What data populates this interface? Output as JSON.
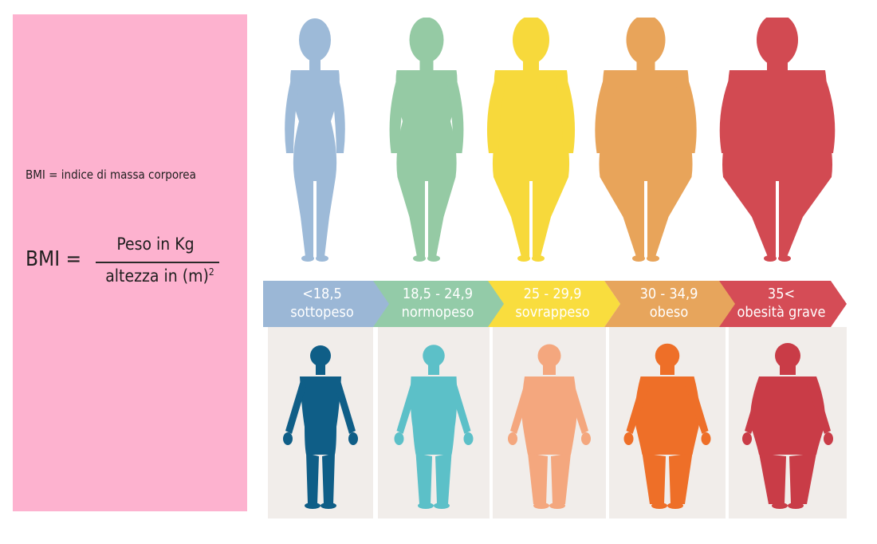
{
  "definition": "BMI = indice di massa corporea",
  "formula": {
    "lhs": "BMI =",
    "numerator": "Peso in Kg",
    "denominator_text": "altezza in (m)",
    "exponent": "2"
  },
  "categories": [
    {
      "range": "<18,5",
      "label": "sottopeso",
      "chevron_color": "#9bb7d6",
      "female_color": "#9dbad8",
      "male_color": "#0f5e87"
    },
    {
      "range": "18,5 - 24,9",
      "label": "normopeso",
      "chevron_color": "#93cba8",
      "female_color": "#95caa4",
      "male_color": "#5cc0c8"
    },
    {
      "range": "25 - 29,9",
      "label": "sovrappeso",
      "chevron_color": "#f9dd3e",
      "female_color": "#f7d93b",
      "male_color": "#f4a77e"
    },
    {
      "range": "30 - 34,9",
      "label": "obeso",
      "chevron_color": "#e7a55c",
      "female_color": "#e8a45a",
      "male_color": "#ee6f28"
    },
    {
      "range": "35<",
      "label": "obesità grave",
      "chevron_color": "#d54c56",
      "female_color": "#d24a52",
      "male_color": "#c93c47"
    }
  ]
}
